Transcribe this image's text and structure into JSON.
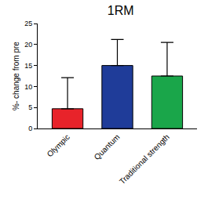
{
  "chart_data": {
    "type": "bar",
    "title": "1RM",
    "y_label": "%- change from pre",
    "categories": [
      "Olympic",
      "Quantum",
      "Traditional strength"
    ],
    "values": [
      4.7,
      15.0,
      12.5
    ],
    "errors": [
      7.4,
      6.2,
      8.0
    ],
    "colors": [
      "#e8232a",
      "#1f3c99",
      "#1aa64a"
    ],
    "ylim": [
      0,
      25
    ],
    "yticks": [
      0,
      5,
      10,
      15,
      20,
      25
    ],
    "grid": false
  }
}
